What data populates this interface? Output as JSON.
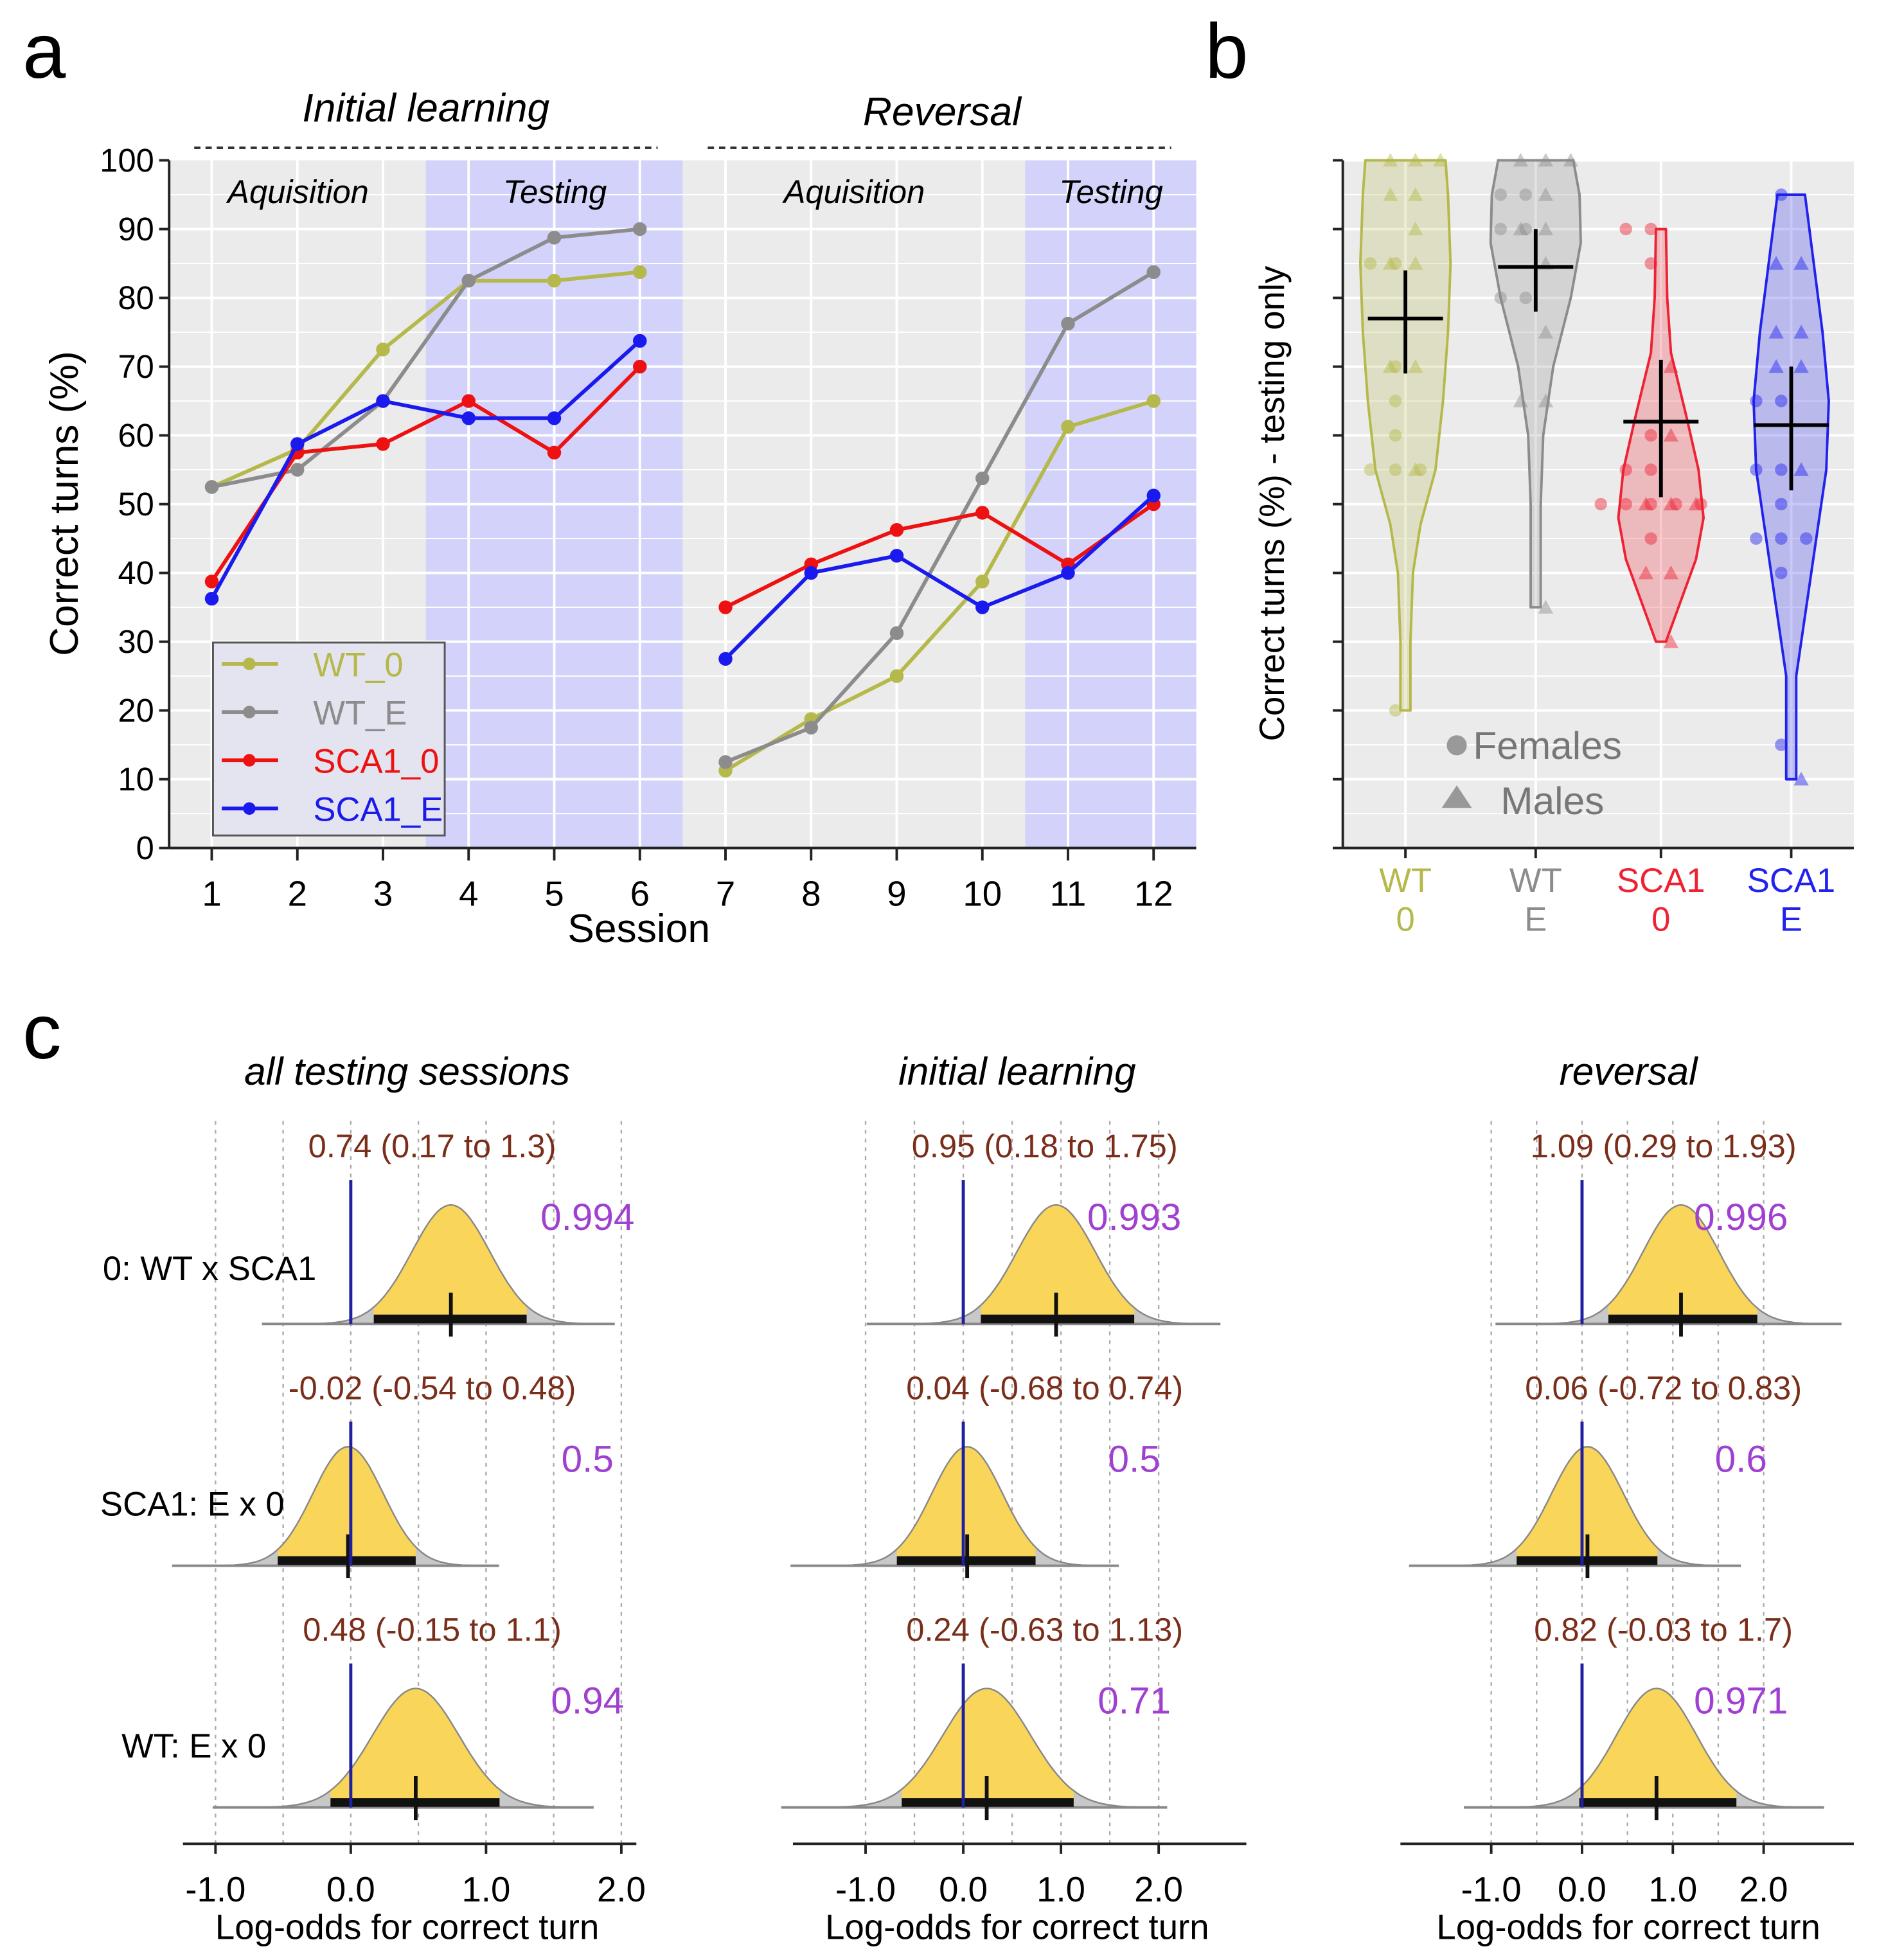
{
  "panels": {
    "a": "a",
    "b": "b",
    "c": "c"
  },
  "chart_data": [
    {
      "type": "line",
      "panel": "a",
      "xlabel": "Session",
      "ylabel": "Correct turns (%)",
      "ylim": [
        0,
        100
      ],
      "yticks": [
        "0",
        "10",
        "20",
        "30",
        "40",
        "50",
        "60",
        "70",
        "80",
        "90",
        "100"
      ],
      "x": [
        1,
        2,
        3,
        4,
        5,
        6,
        7,
        8,
        9,
        10,
        11,
        12
      ],
      "phase_headers": [
        "Initial learning",
        "Reversal"
      ],
      "stage_labels": [
        "Aquisition",
        "Testing",
        "Aquisition",
        "Testing"
      ],
      "testing_shading_sessions": [
        [
          3.5,
          6.5
        ],
        [
          10.5,
          12.5
        ]
      ],
      "grid": true,
      "legend_position": "bottom-left",
      "series": [
        {
          "name": "WT_0",
          "color": "#b5b84a",
          "values": [
            52.5,
            58,
            72.5,
            82.5,
            82.5,
            83.75,
            11.25,
            18.75,
            25,
            38.75,
            61.25,
            65
          ]
        },
        {
          "name": "WT_E",
          "color": "#8c8c8c",
          "values": [
            52.5,
            55,
            65,
            82.5,
            88.75,
            90,
            12.5,
            17.5,
            31.25,
            53.75,
            76.25,
            83.75
          ]
        },
        {
          "name": "SCA1_0",
          "color": "#ee1111",
          "values": [
            38.75,
            57.5,
            58.75,
            65,
            57.5,
            70,
            35,
            41.25,
            46.25,
            48.75,
            41.25,
            50
          ]
        },
        {
          "name": "SCA1_E",
          "color": "#1a1aee",
          "values": [
            36.25,
            58.75,
            65,
            62.5,
            62.5,
            73.75,
            27.5,
            40,
            42.5,
            35,
            40,
            51.25
          ]
        }
      ]
    },
    {
      "type": "violin",
      "panel": "b",
      "ylabel": "Correct turns (%) - testing only",
      "ylim": [
        0,
        100
      ],
      "legend": {
        "females": "Females",
        "males": "Males"
      },
      "legend_position": "bottom-left",
      "groups": [
        {
          "line1": "WT",
          "line2": "0",
          "color": "#b5b84a",
          "mean": 77,
          "ci": [
            69,
            84
          ],
          "range": [
            20,
            100
          ],
          "females": [
            85,
            85,
            70,
            65,
            60,
            55,
            55,
            55,
            20
          ],
          "males": [
            100,
            100,
            100,
            95,
            95,
            90,
            85,
            85,
            70,
            70,
            55
          ]
        },
        {
          "line1": "WT",
          "line2": "E",
          "color": "#8c8c8c",
          "mean": 84.5,
          "ci": [
            78,
            90
          ],
          "range": [
            35,
            100
          ],
          "females": [
            95,
            95,
            90,
            90,
            80,
            80
          ],
          "males": [
            100,
            100,
            100,
            95,
            90,
            90,
            85,
            75,
            65,
            65,
            35
          ]
        },
        {
          "line1": "SCA1",
          "line2": "0",
          "color": "#ee2233",
          "mean": 62,
          "ci": [
            51,
            71
          ],
          "range": [
            30,
            90
          ],
          "females": [
            90,
            90,
            85,
            60,
            55,
            55,
            50,
            50,
            50,
            50,
            50,
            45
          ],
          "males": [
            70,
            60,
            50,
            50,
            50,
            40,
            40,
            30
          ]
        },
        {
          "line1": "SCA1",
          "line2": "E",
          "color": "#2222ee",
          "mean": 61.5,
          "ci": [
            52,
            70
          ],
          "range": [
            10,
            95
          ],
          "females": [
            95,
            65,
            65,
            55,
            55,
            50,
            45,
            45,
            45,
            40,
            15
          ],
          "males": [
            85,
            85,
            75,
            75,
            70,
            70,
            55,
            10
          ]
        }
      ]
    },
    {
      "type": "density",
      "panel": "c",
      "xlabel": "Log-odds for correct turn",
      "xticks": [
        "-1.0",
        "0.0",
        "1.0",
        "2.0"
      ],
      "row_labels": [
        "0: WT x SCA1",
        "SCA1: E x 0",
        "WT: E x 0"
      ],
      "columns": [
        {
          "title": "all testing sessions",
          "rows": [
            {
              "mean": 0.74,
              "lo": 0.17,
              "hi": 1.3,
              "label": "0.74 (0.17 to 1.3)",
              "prob": "0.994"
            },
            {
              "mean": -0.02,
              "lo": -0.54,
              "hi": 0.48,
              "label": "-0.02 (-0.54 to 0.48)",
              "prob": "0.5"
            },
            {
              "mean": 0.48,
              "lo": -0.15,
              "hi": 1.1,
              "label": "0.48 (-0.15 to 1.1)",
              "prob": "0.94"
            }
          ]
        },
        {
          "title": "initial learning",
          "rows": [
            {
              "mean": 0.95,
              "lo": 0.18,
              "hi": 1.75,
              "label": "0.95 (0.18 to 1.75)",
              "prob": "0.993"
            },
            {
              "mean": 0.04,
              "lo": -0.68,
              "hi": 0.74,
              "label": "0.04 (-0.68 to 0.74)",
              "prob": "0.5"
            },
            {
              "mean": 0.24,
              "lo": -0.63,
              "hi": 1.13,
              "label": "0.24 (-0.63 to 1.13)",
              "prob": "0.71"
            }
          ]
        },
        {
          "title": "reversal",
          "rows": [
            {
              "mean": 1.09,
              "lo": 0.29,
              "hi": 1.93,
              "label": "1.09 (0.29 to 1.93)",
              "prob": "0.996"
            },
            {
              "mean": 0.06,
              "lo": -0.72,
              "hi": 0.83,
              "label": "0.06 (-0.72 to 0.83)",
              "prob": "0.6"
            },
            {
              "mean": 0.82,
              "lo": -0.03,
              "hi": 1.7,
              "label": "0.82 (-0.03 to 1.7)",
              "prob": "0.971"
            }
          ]
        }
      ],
      "colors": {
        "fill": "#f9d55a",
        "tail": "#c8c8c8",
        "zero_line": "#2020a0",
        "label": "#7a2e1a",
        "prob": "#a040d0"
      }
    }
  ]
}
